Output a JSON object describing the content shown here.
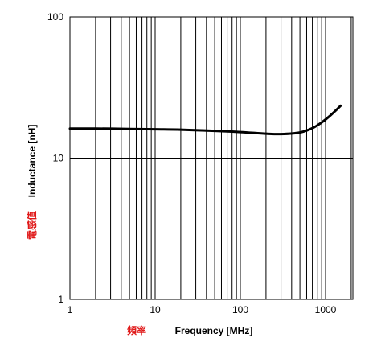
{
  "chart_data": {
    "type": "line",
    "xlabel": "Frequency [MHz]",
    "ylabel": "Inductance [nH]",
    "xlabel_cjk": "頻率",
    "ylabel_cjk": "電感值",
    "x_scale": "log",
    "y_scale": "log",
    "xlim": [
      1,
      2000
    ],
    "ylim": [
      1,
      100
    ],
    "x_ticks": [
      1,
      10,
      100,
      1000
    ],
    "x_tick_labels": [
      "1",
      "10",
      "100",
      "1000"
    ],
    "y_ticks": [
      1,
      10,
      100
    ],
    "y_tick_labels": [
      "1",
      "10",
      "100"
    ],
    "grid": true,
    "series": [
      {
        "x": [
          1,
          2,
          5,
          10,
          20,
          50,
          100,
          200,
          300,
          500,
          700,
          900,
          1100,
          1300,
          1500
        ],
        "y": [
          16.2,
          16.2,
          16.1,
          16.0,
          15.9,
          15.6,
          15.3,
          14.9,
          14.8,
          15.2,
          16.3,
          17.9,
          19.7,
          21.6,
          23.5
        ]
      }
    ]
  },
  "colors": {
    "line": "#000000",
    "grid": "#000000",
    "cjk_label": "#e01818"
  }
}
